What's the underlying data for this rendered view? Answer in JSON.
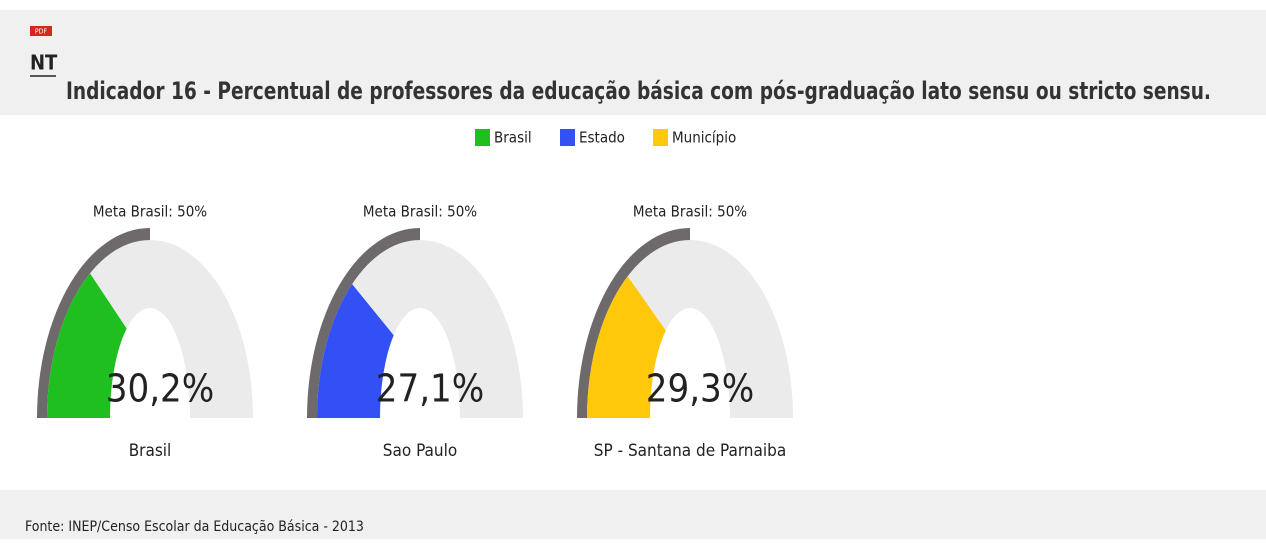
{
  "header": {
    "badge": "PDF",
    "icon": "NT",
    "title": "Indicador 16 - Percentual de professores da educação básica com pós-graduação lato sensu ou stricto sensu."
  },
  "legend": [
    {
      "name": "Brasil",
      "color": "#1fbf1f"
    },
    {
      "name": "Estado",
      "color": "#3350f5"
    },
    {
      "name": "Município",
      "color": "#ffc80a"
    }
  ],
  "chart_data": [
    {
      "type": "gauge",
      "annotation": "Meta Brasil: 50%",
      "target": 50,
      "label": "Brasil",
      "values": [
        30.2
      ],
      "value_labels": [
        "30,2%"
      ],
      "color": "#1fbf1f",
      "ylim": [
        0,
        100
      ]
    },
    {
      "type": "gauge",
      "annotation": "Meta Brasil: 50%",
      "target": 50,
      "label": "Sao Paulo",
      "values": [
        27.1
      ],
      "value_labels": [
        "27,1%"
      ],
      "color": "#3350f5",
      "ylim": [
        0,
        100
      ]
    },
    {
      "type": "gauge",
      "annotation": "Meta Brasil: 50%",
      "target": 50,
      "label": "SP - Santana de Parnaiba",
      "values": [
        29.3
      ],
      "value_labels": [
        "29,3%"
      ],
      "color": "#ffc80a",
      "ylim": [
        0,
        100
      ]
    }
  ],
  "footer": "Fonte: INEP/Censo Escolar da Educação Básica - 2013"
}
